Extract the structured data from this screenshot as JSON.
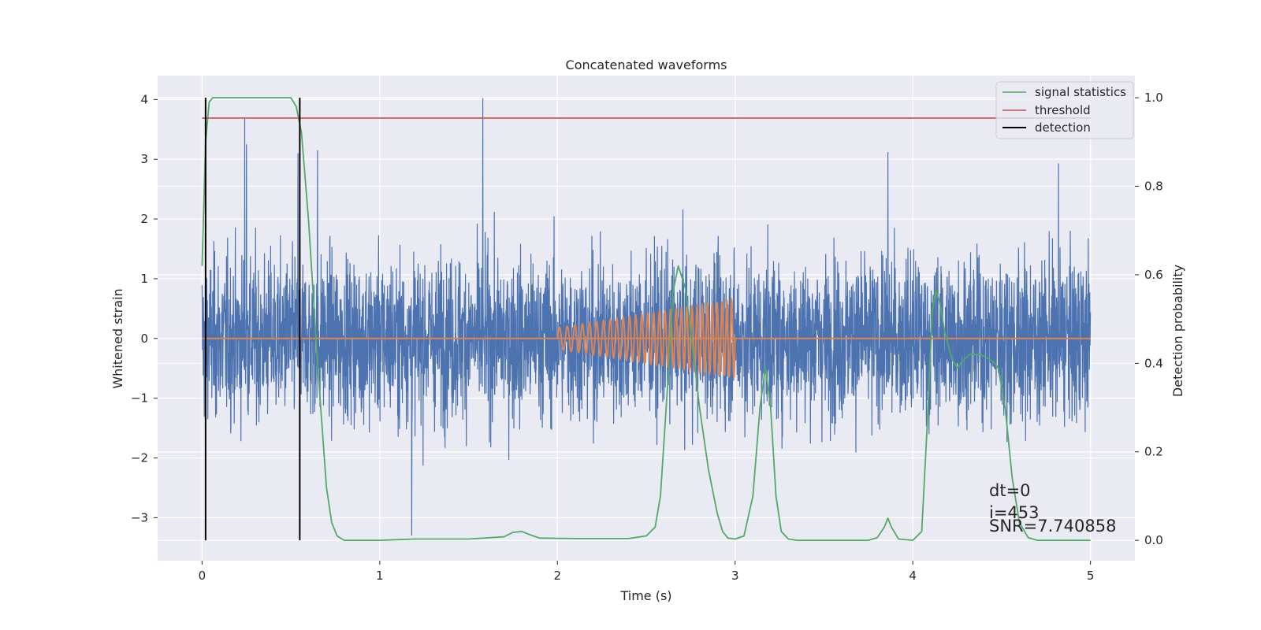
{
  "chart_data": {
    "type": "line",
    "title": "Concatenated waveforms",
    "xlabel": "Time (s)",
    "ylabel": "Whitened strain",
    "y2label": "Detection probability",
    "xlim": [
      -0.25,
      5.25
    ],
    "ylim": [
      -3.72,
      4.4
    ],
    "y2lim": [
      -0.046,
      1.05
    ],
    "xticks": [
      0,
      1,
      2,
      3,
      4,
      5
    ],
    "xtick_labels": [
      "0",
      "1",
      "2",
      "3",
      "4",
      "5"
    ],
    "yticks": [
      -3,
      -2,
      -1,
      0,
      1,
      2,
      3,
      4
    ],
    "ytick_labels": [
      "−3",
      "−2",
      "−1",
      "0",
      "1",
      "2",
      "3",
      "4"
    ],
    "y2ticks": [
      0.0,
      0.2,
      0.4,
      0.6,
      0.8,
      1.0
    ],
    "y2tick_labels": [
      "0.0",
      "0.2",
      "0.4",
      "0.6",
      "0.8",
      "1.0"
    ],
    "grid": true,
    "legend_position": "top-right",
    "colors": {
      "strain": "#4c72b0",
      "template": "#dd8452",
      "signal_statistics": "#55a868",
      "threshold": "#c44e52",
      "detection": "#000000",
      "axes_bg": "#eaeaf2",
      "grid": "#ffffff"
    },
    "series": [
      {
        "name": "signal statistics",
        "axis": "right",
        "x": [
          0.0,
          0.02,
          0.04,
          0.06,
          0.1,
          0.2,
          0.3,
          0.4,
          0.5,
          0.53,
          0.56,
          0.6,
          0.65,
          0.7,
          0.73,
          0.76,
          0.8,
          1.0,
          1.2,
          1.5,
          1.7,
          1.75,
          1.8,
          1.85,
          1.9,
          2.1,
          2.4,
          2.5,
          2.55,
          2.58,
          2.62,
          2.65,
          2.68,
          2.72,
          2.76,
          2.8,
          2.85,
          2.9,
          2.93,
          2.96,
          3.0,
          3.05,
          3.1,
          3.14,
          3.17,
          3.2,
          3.23,
          3.26,
          3.3,
          3.35,
          3.5,
          3.75,
          3.8,
          3.84,
          3.86,
          3.88,
          3.92,
          4.0,
          4.05,
          4.08,
          4.11,
          4.13,
          4.15,
          4.18,
          4.22,
          4.25,
          4.28,
          4.32,
          4.38,
          4.45,
          4.48,
          4.52,
          4.56,
          4.6,
          4.65,
          4.7,
          4.8,
          5.0
        ],
        "values": [
          0.62,
          0.9,
          0.99,
          1.0,
          1.0,
          1.0,
          1.0,
          1.0,
          1.0,
          0.98,
          0.92,
          0.72,
          0.4,
          0.12,
          0.04,
          0.01,
          0.0,
          0.0,
          0.003,
          0.003,
          0.008,
          0.018,
          0.02,
          0.012,
          0.005,
          0.004,
          0.004,
          0.01,
          0.03,
          0.1,
          0.35,
          0.56,
          0.62,
          0.57,
          0.44,
          0.3,
          0.16,
          0.06,
          0.02,
          0.005,
          0.003,
          0.01,
          0.1,
          0.3,
          0.39,
          0.3,
          0.1,
          0.02,
          0.003,
          0.0,
          0.0,
          0.0,
          0.006,
          0.03,
          0.05,
          0.03,
          0.003,
          0.0,
          0.02,
          0.25,
          0.52,
          0.565,
          0.54,
          0.47,
          0.41,
          0.39,
          0.405,
          0.42,
          0.42,
          0.405,
          0.39,
          0.3,
          0.14,
          0.04,
          0.006,
          0.0,
          0.0,
          0.0
        ]
      },
      {
        "name": "threshold",
        "axis": "right",
        "x": [
          0.0,
          5.0
        ],
        "values": [
          0.954,
          0.954
        ]
      },
      {
        "name": "detection",
        "axis": "right",
        "type": "vlines",
        "x": [
          0.02,
          0.55
        ],
        "ymin": 0.0,
        "ymax": 1.0
      },
      {
        "axis": "left",
        "type": "noise",
        "x_range": [
          0.0,
          5.0
        ],
        "amplitude_typical": 1.5,
        "peaks": [
          {
            "x": 0.24,
            "y": 3.68
          },
          {
            "x": 0.25,
            "y": 3.25
          },
          {
            "x": 0.54,
            "y": 3.1
          },
          {
            "x": 0.65,
            "y": 3.15
          },
          {
            "x": 1.18,
            "y": -3.3
          },
          {
            "x": 1.58,
            "y": 4.02
          },
          {
            "x": 3.86,
            "y": 3.12
          },
          {
            "x": 4.82,
            "y": 2.93
          }
        ]
      },
      {
        "axis": "left",
        "type": "chirp",
        "x_range": [
          2.0,
          3.0
        ],
        "amplitude_range": [
          0.18,
          0.65
        ],
        "baseline_x": [
          0.0,
          5.0
        ],
        "baseline_value": 0.0
      }
    ],
    "annotations": [
      "dt=0",
      "i=453",
      "SNR=7.740858"
    ]
  }
}
